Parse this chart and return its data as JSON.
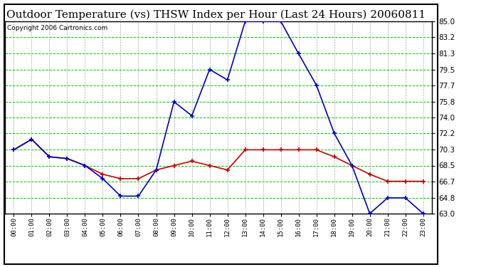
{
  "title": "Outdoor Temperature (vs) THSW Index per Hour (Last 24 Hours) 20060811",
  "copyright": "Copyright 2006 Cartronics.com",
  "hours": [
    0,
    1,
    2,
    3,
    4,
    5,
    6,
    7,
    8,
    9,
    10,
    11,
    12,
    13,
    14,
    15,
    16,
    17,
    18,
    19,
    20,
    21,
    22,
    23
  ],
  "hour_labels": [
    "00:00",
    "01:00",
    "02:00",
    "03:00",
    "04:00",
    "05:00",
    "06:00",
    "07:00",
    "08:00",
    "09:00",
    "10:00",
    "11:00",
    "12:00",
    "13:00",
    "14:00",
    "15:00",
    "16:00",
    "17:00",
    "18:00",
    "19:00",
    "20:00",
    "21:00",
    "22:00",
    "23:00"
  ],
  "temp": [
    70.3,
    71.5,
    69.5,
    69.3,
    68.5,
    67.5,
    67.0,
    67.0,
    68.0,
    68.5,
    69.0,
    68.5,
    68.0,
    70.3,
    70.3,
    70.3,
    70.3,
    70.3,
    69.5,
    68.5,
    67.5,
    66.7,
    66.7,
    66.7
  ],
  "thsw": [
    70.3,
    71.5,
    69.5,
    69.3,
    68.5,
    67.0,
    65.0,
    65.0,
    68.0,
    75.8,
    74.2,
    79.5,
    78.3,
    85.0,
    85.0,
    85.0,
    81.3,
    77.7,
    72.2,
    68.5,
    63.0,
    64.8,
    64.8,
    63.0
  ],
  "temp_color": "#cc0000",
  "thsw_color": "#0000cc",
  "bg_color": "#ffffff",
  "grid_hcolor": "#00cc00",
  "grid_vcolor": "#aaaaaa",
  "ylim": [
    63.0,
    85.0
  ],
  "yticks": [
    63.0,
    64.8,
    66.7,
    68.5,
    70.3,
    72.2,
    74.0,
    75.8,
    77.7,
    79.5,
    81.3,
    83.2,
    85.0
  ],
  "title_fontsize": 11,
  "copyright_fontsize": 6.5
}
